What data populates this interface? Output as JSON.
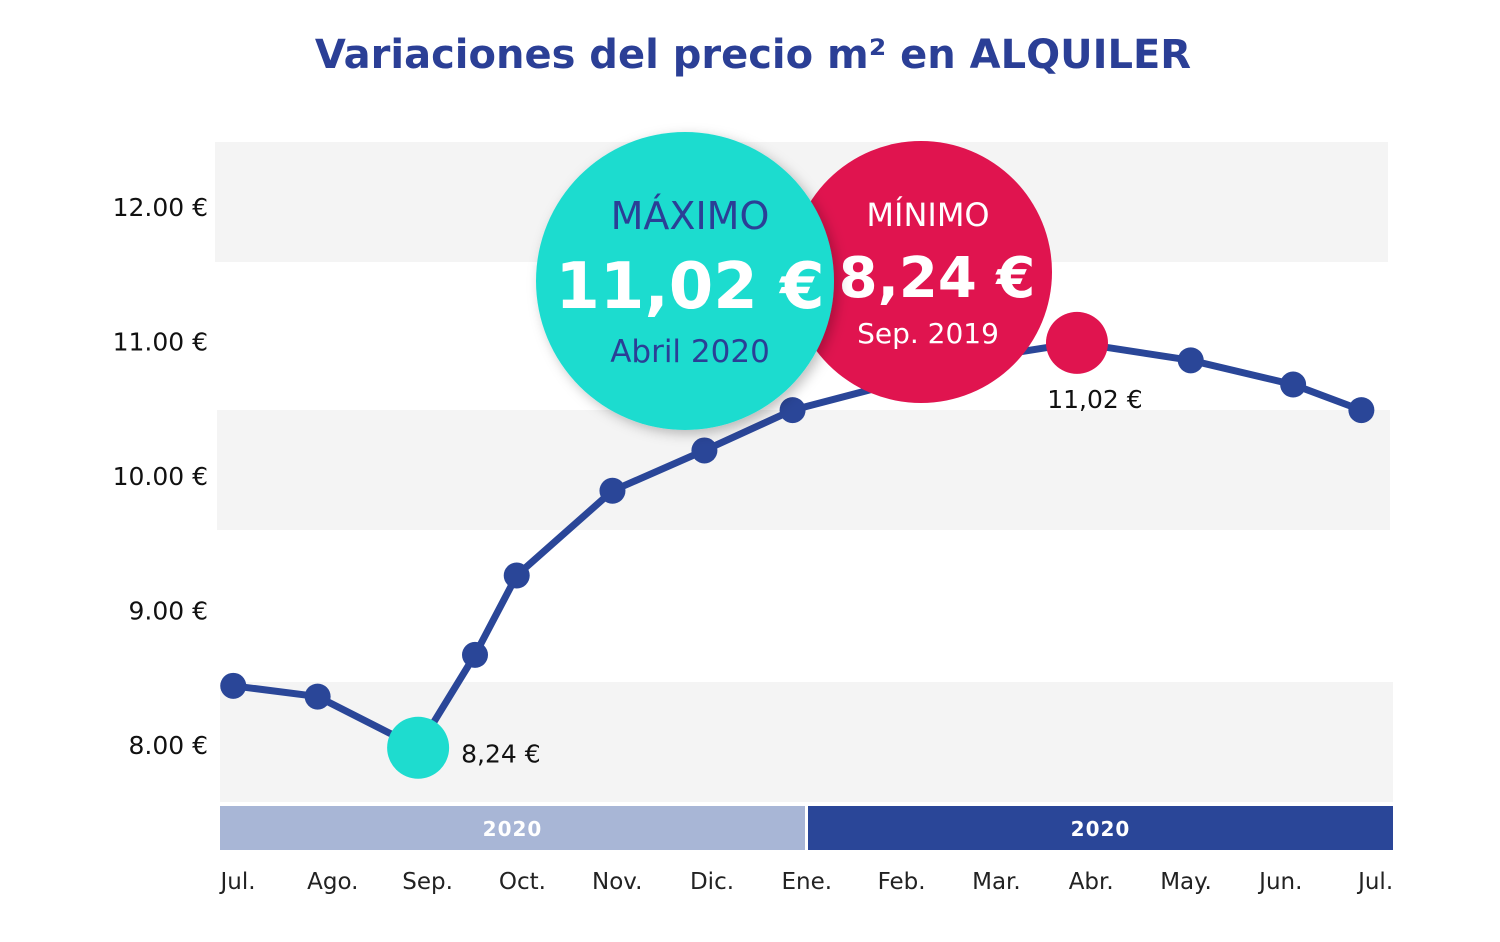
{
  "chart_data": {
    "type": "line",
    "title": "Variaciones del precio m² en ALQUILER",
    "xlabel": "",
    "ylabel": "",
    "ylim": [
      7.5,
      12.5
    ],
    "y_ticks": [
      "12.00 €",
      "11.00 €",
      "10.00 €",
      "9.00 €",
      "8.00 €"
    ],
    "y_tick_values": [
      12,
      11,
      10,
      9,
      8
    ],
    "categories": [
      "Jul.",
      "Ago.",
      "Sep.",
      "Oct.",
      "Nov.",
      "Dic.",
      "Ene.",
      "Feb.",
      "Mar.",
      "Abr.",
      "May.",
      "Jun.",
      "Jul."
    ],
    "year_bands": [
      {
        "label": "2020",
        "from": 0,
        "to": 6,
        "color": "#a8b6d6"
      },
      {
        "label": "2020",
        "from": 6,
        "to": 12,
        "color": "#2a4698"
      }
    ],
    "grid": "alternating horizontal bands",
    "series": [
      {
        "color": "#2a4698",
        "x": [
          -0.05,
          0.84,
          1.9,
          2.5,
          2.94,
          3.95,
          4.92,
          5.85,
          6.88,
          8.04,
          8.85,
          10.05,
          11.13,
          11.85
        ],
        "values": [
          8.44,
          8.36,
          7.98,
          8.67,
          9.26,
          9.89,
          10.19,
          10.49,
          10.68,
          10.9,
          10.99,
          10.86,
          10.68,
          10.49
        ]
      }
    ],
    "highlights": [
      {
        "point_index": 2,
        "label": "8,24 €",
        "color": "#1edccf"
      },
      {
        "point_index": 10,
        "label": "11,02 €",
        "color": "#e0144f"
      }
    ],
    "callouts": {
      "max": {
        "heading": "MÁXIMO",
        "value": "11,02 €",
        "period": "Abril 2020",
        "color": "#1edccf",
        "text_color": "#2b3f96"
      },
      "min": {
        "heading": "MÍNIMO",
        "value": "8,24 €",
        "period": "Sep. 2019",
        "color": "#e0144f",
        "text_color": "#ffffff"
      }
    }
  }
}
